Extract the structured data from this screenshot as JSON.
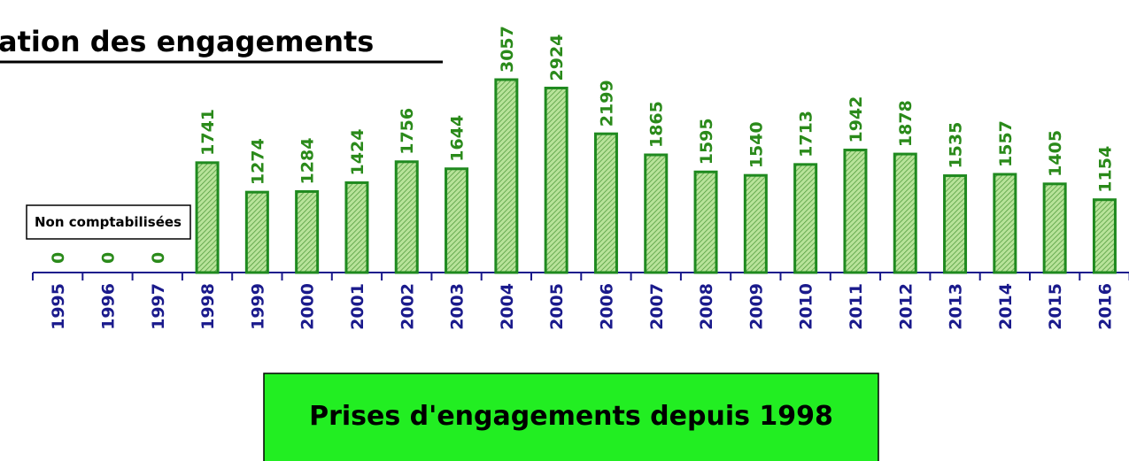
{
  "chart_data": {
    "type": "bar",
    "title": "ation des engagements",
    "subtitle": "Prises d'engagements depuis 1998",
    "annotations": [
      "Non comptabilisées"
    ],
    "categories": [
      "1995",
      "1996",
      "1997",
      "1998",
      "1999",
      "2000",
      "2001",
      "2002",
      "2003",
      "2004",
      "2005",
      "2006",
      "2007",
      "2008",
      "2009",
      "2010",
      "2011",
      "2012",
      "2013",
      "2014",
      "2015",
      "2016"
    ],
    "values": [
      0,
      0,
      0,
      1741,
      1274,
      1284,
      1424,
      1756,
      1644,
      3057,
      2924,
      2199,
      1865,
      1595,
      1540,
      1713,
      1942,
      1878,
      1535,
      1557,
      1405,
      1154
    ],
    "color": "#1f8a1f"
  }
}
